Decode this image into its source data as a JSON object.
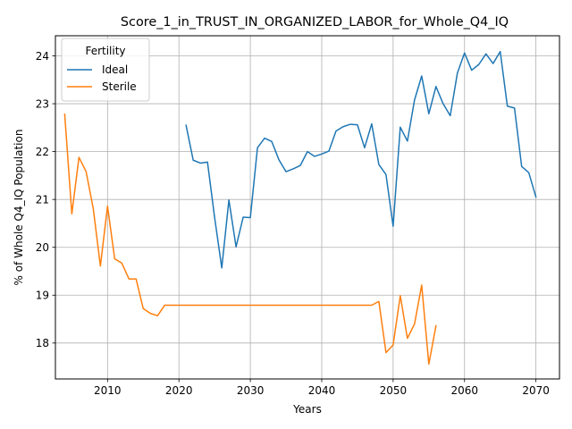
{
  "chart_data": {
    "type": "line",
    "title": "Score_1_in_TRUST_IN_ORGANIZED_LABOR_for_Whole_Q4_IQ",
    "xlabel": "Years",
    "ylabel": "% of Whole Q4_IQ Population",
    "xlim": [
      2002.7,
      2073.3
    ],
    "ylim": [
      17.25,
      24.42
    ],
    "xticks": [
      2010,
      2020,
      2030,
      2040,
      2050,
      2060,
      2070
    ],
    "yticks": [
      18,
      19,
      20,
      21,
      22,
      23,
      24
    ],
    "grid": true,
    "legend": {
      "title": "Fertility",
      "placement": "upper-left"
    },
    "series": [
      {
        "name": "Ideal",
        "color": "#1f77b4",
        "x": [
          2021,
          2022,
          2023,
          2024,
          2025,
          2026,
          2027,
          2028,
          2029,
          2030,
          2031,
          2032,
          2033,
          2034,
          2035,
          2036,
          2037,
          2038,
          2039,
          2040,
          2041,
          2042,
          2043,
          2044,
          2045,
          2046,
          2047,
          2048,
          2049,
          2050,
          2051,
          2052,
          2053,
          2054,
          2055,
          2056,
          2057,
          2058,
          2059,
          2060,
          2061,
          2062,
          2063,
          2064,
          2065,
          2066,
          2067,
          2068,
          2069,
          2070
        ],
        "y": [
          22.55,
          21.82,
          21.76,
          21.78,
          20.62,
          19.57,
          20.99,
          20.01,
          20.63,
          20.62,
          22.08,
          22.28,
          22.21,
          21.83,
          21.58,
          21.64,
          21.71,
          22.0,
          21.9,
          21.95,
          22.01,
          22.43,
          22.52,
          22.57,
          22.56,
          22.08,
          22.58,
          21.73,
          21.52,
          20.44,
          22.51,
          22.22,
          23.08,
          23.58,
          22.79,
          23.36,
          23.0,
          22.75,
          23.64,
          24.06,
          23.7,
          23.82,
          24.04,
          23.84,
          24.09,
          22.95,
          22.91,
          21.69,
          21.56,
          21.05
        ]
      },
      {
        "name": "Sterile",
        "color": "#ff7f0e",
        "x": [
          2004,
          2005,
          2006,
          2007,
          2008,
          2009,
          2010,
          2011,
          2012,
          2013,
          2014,
          2015,
          2016,
          2017,
          2018,
          2019,
          2020,
          2021,
          2022,
          2023,
          2024,
          2025,
          2026,
          2027,
          2028,
          2029,
          2030,
          2031,
          2032,
          2033,
          2034,
          2035,
          2036,
          2037,
          2038,
          2039,
          2040,
          2041,
          2042,
          2043,
          2044,
          2045,
          2046,
          2047,
          2048,
          2049,
          2050,
          2051,
          2052,
          2053,
          2054,
          2055,
          2056
        ],
        "y": [
          22.78,
          20.7,
          21.88,
          21.58,
          20.81,
          19.61,
          20.86,
          19.76,
          19.67,
          19.34,
          19.34,
          18.72,
          18.62,
          18.57,
          18.79,
          18.79,
          18.79,
          18.79,
          18.79,
          18.79,
          18.79,
          18.79,
          18.79,
          18.79,
          18.79,
          18.79,
          18.79,
          18.79,
          18.79,
          18.79,
          18.79,
          18.79,
          18.79,
          18.79,
          18.79,
          18.79,
          18.79,
          18.79,
          18.79,
          18.79,
          18.79,
          18.79,
          18.79,
          18.79,
          18.87,
          17.8,
          17.96,
          18.99,
          18.1,
          18.4,
          19.21,
          17.56,
          18.36
        ]
      }
    ]
  }
}
